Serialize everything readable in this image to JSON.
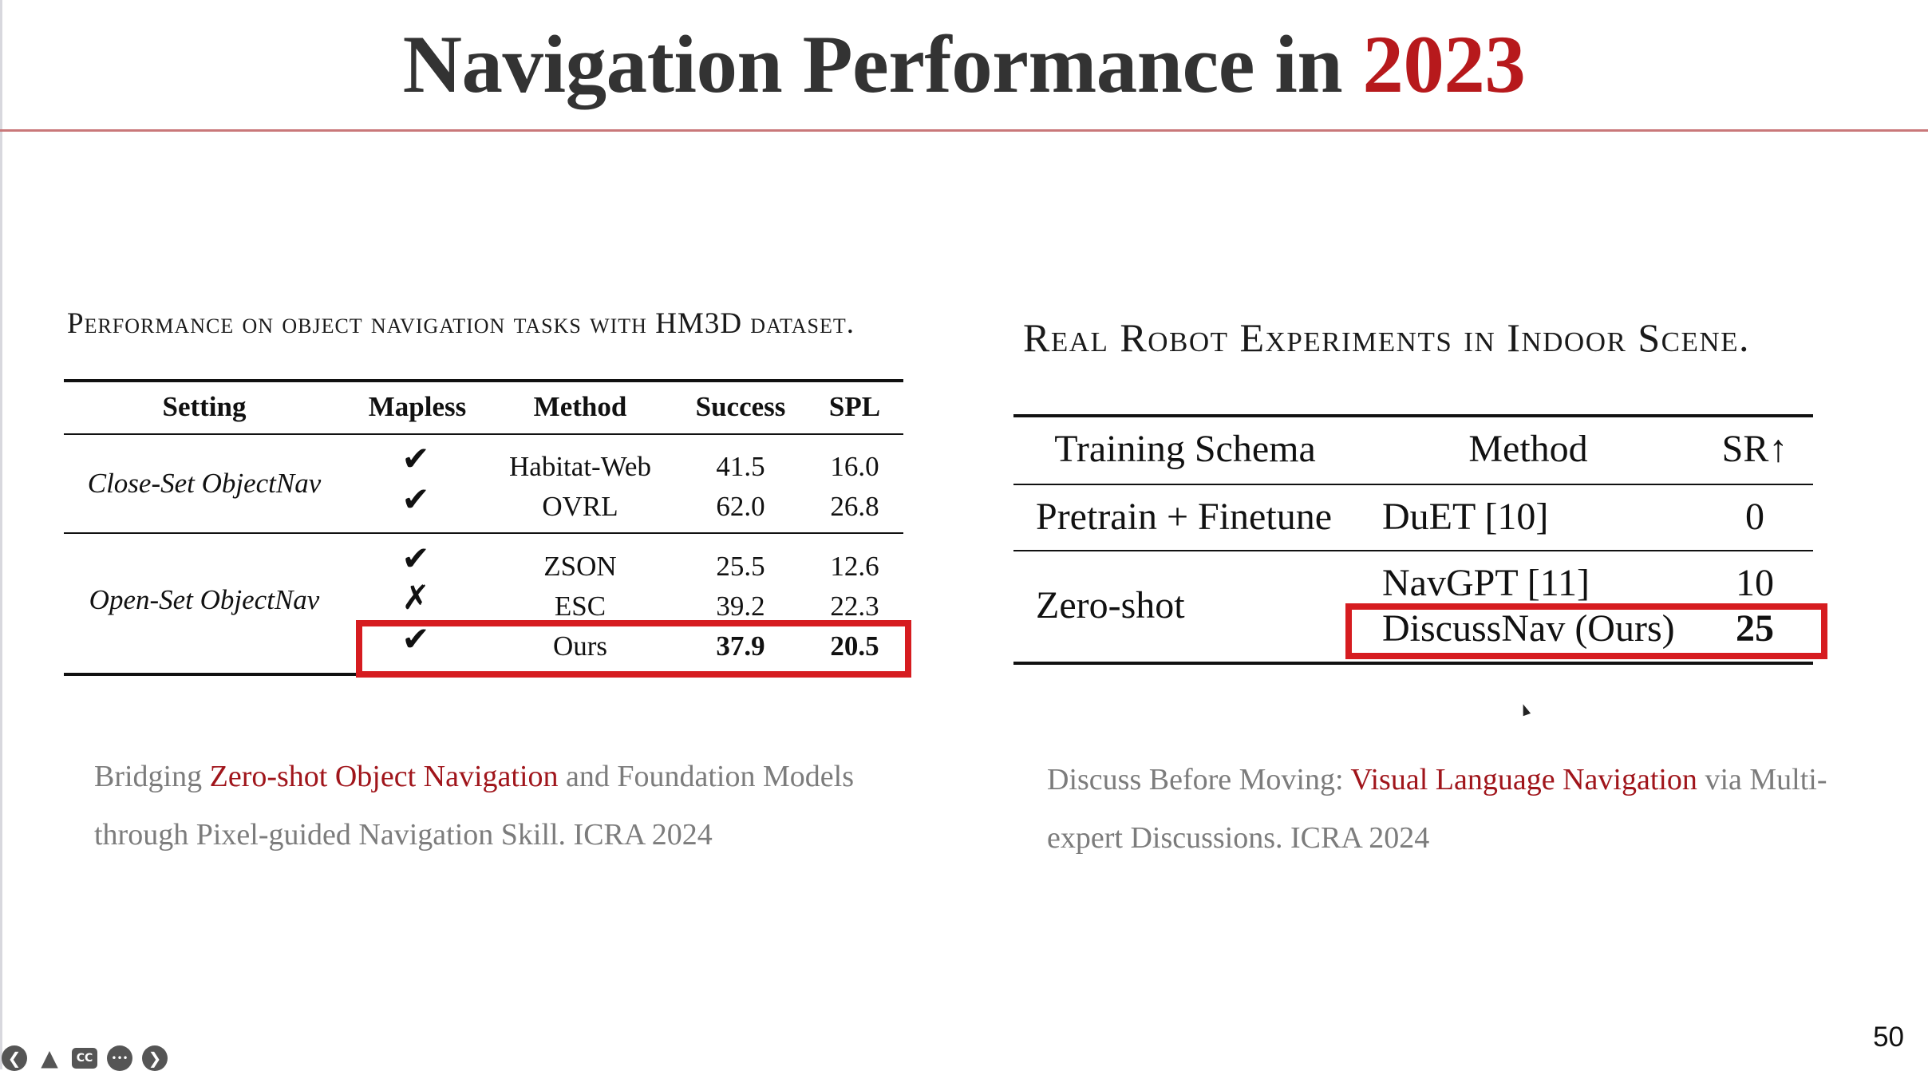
{
  "slide": {
    "title_prefix": "Navigation Performance in ",
    "title_year": "2023",
    "page_number": "50"
  },
  "colors": {
    "accent": "#b7191c",
    "highlight_box": "#d61c20",
    "reference_text": "#7c7c7c"
  },
  "left_table": {
    "caption": "Performance on object navigation tasks with HM3D dataset.",
    "headers": [
      "Setting",
      "Mapless",
      "Method",
      "Success",
      "SPL"
    ],
    "groups": [
      {
        "setting": "Close-Set ObjectNav",
        "rows": [
          {
            "mapless": "✔",
            "method": "Habitat-Web",
            "success": "41.5",
            "spl": "16.0"
          },
          {
            "mapless": "✔",
            "method": "OVRL",
            "success": "62.0",
            "spl": "26.8"
          }
        ]
      },
      {
        "setting": "Open-Set ObjectNav",
        "rows": [
          {
            "mapless": "✔",
            "method": "ZSON",
            "success": "25.5",
            "spl": "12.6"
          },
          {
            "mapless": "✗",
            "method": "ESC",
            "success": "39.2",
            "spl": "22.3"
          },
          {
            "mapless": "✔",
            "method": "Ours",
            "success": "37.9",
            "spl": "20.5"
          }
        ]
      }
    ]
  },
  "right_table": {
    "caption": "Real Robot Experiments in Indoor Scene.",
    "headers": [
      "Training Schema",
      "Method",
      "SR↑"
    ],
    "groups": [
      {
        "schema": "Pretrain + Finetune",
        "rows": [
          {
            "method": "DuET [10]",
            "sr": "0"
          }
        ]
      },
      {
        "schema": "Zero-shot",
        "rows": [
          {
            "method": "NavGPT [11]",
            "sr": "10"
          },
          {
            "method": "DiscussNav (Ours)",
            "sr": "25"
          }
        ]
      }
    ]
  },
  "references": {
    "left": {
      "before": "Bridging ",
      "highlight": "Zero-shot Object Navigation",
      "after": " and Foundation Models through Pixel-guided Navigation Skill. ICRA 2024"
    },
    "right": {
      "before": "Discuss Before Moving: ",
      "highlight": "Visual Language Navigation",
      "after": " via Multi-expert Discussions. ICRA 2024"
    }
  },
  "player_controls": {
    "icons": [
      "previous-slide-icon",
      "pen-tool-icon",
      "closed-captions-icon",
      "more-options-icon",
      "next-slide-icon"
    ],
    "glyphs": [
      "❮",
      "▲",
      "CC",
      "•••",
      "❯"
    ]
  }
}
